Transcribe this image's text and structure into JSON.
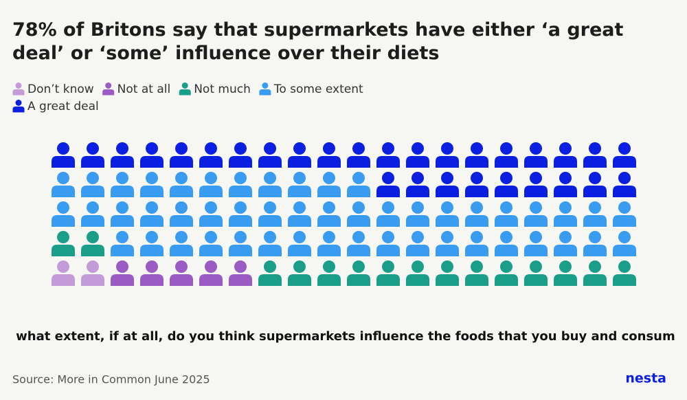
{
  "chart_data": {
    "type": "waffle",
    "title": "78% of Britons say that supermarkets have either ‘a great deal’ or ‘some’ influence over their diets",
    "question": "To what extent, if at all, do you think supermarkets influence the foods that you buy and consume?",
    "source": "Source: More in Common June 2025",
    "brand": "nesta",
    "columns": 20,
    "rows": 5,
    "series": [
      {
        "name": "Don’t know",
        "color": "#c39bd9",
        "value": 2
      },
      {
        "name": "Not at all",
        "color": "#9a5cc4",
        "value": 5
      },
      {
        "name": "Not much",
        "color": "#1a9e8a",
        "value": 15
      },
      {
        "name": "To some extent",
        "color": "#3a9cf0",
        "value": 49
      },
      {
        "name": "A great deal",
        "color": "#0a1fe0",
        "value": 29
      }
    ]
  }
}
